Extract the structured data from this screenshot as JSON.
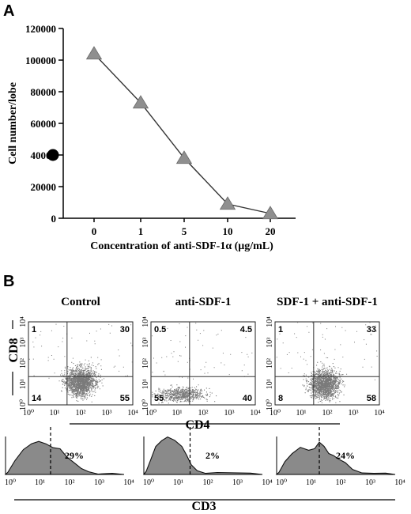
{
  "panel_a": {
    "label": "A",
    "chart_data": {
      "type": "line",
      "ylabel": "Cell number/lobe",
      "xlabel": "Concentration of anti-SDF-1α  (μg/mL)",
      "categories": [
        "0",
        "1",
        "5",
        "10",
        "20"
      ],
      "series": [
        {
          "values": [
            104000,
            73000,
            38000,
            9000,
            3000
          ]
        }
      ],
      "reference_point": {
        "value": 40000
      },
      "ylim": [
        0,
        120000
      ],
      "yticks": [
        "0",
        "20000",
        "40000",
        "60000",
        "80000",
        "100000",
        "120000"
      ],
      "grid": false,
      "colors": {
        "marker": "#8f8f8f",
        "line": "#333333",
        "reference": "#000000"
      }
    }
  },
  "panel_b": {
    "label": "B",
    "chart_data": [
      {
        "type": "scatter",
        "plots": [
          {
            "title": "Control",
            "quadrants": [
              "1",
              "30",
              "14",
              "55"
            ]
          },
          {
            "title": "anti-SDF-1",
            "quadrants": [
              "0.5",
              "4.5",
              "55",
              "40"
            ]
          },
          {
            "title": "SDF-1 + anti-SDF-1",
            "quadrants": [
              "1",
              "33",
              "8",
              "58"
            ]
          }
        ],
        "xlabel": "CD4",
        "ylabel": "CD8",
        "xticks": [
          "10⁰",
          "10¹",
          "10²",
          "10³",
          "10⁴"
        ],
        "yticks": [
          "10⁰",
          "10¹",
          "10²",
          "10³",
          "10⁴"
        ]
      },
      {
        "type": "area",
        "histograms": [
          {
            "percent": "29%"
          },
          {
            "percent": "2%"
          },
          {
            "percent": "24%"
          }
        ],
        "xlabel": "CD3",
        "xticks": [
          "10⁰",
          "10¹",
          "10²",
          "10³",
          "10⁴"
        ]
      }
    ]
  }
}
